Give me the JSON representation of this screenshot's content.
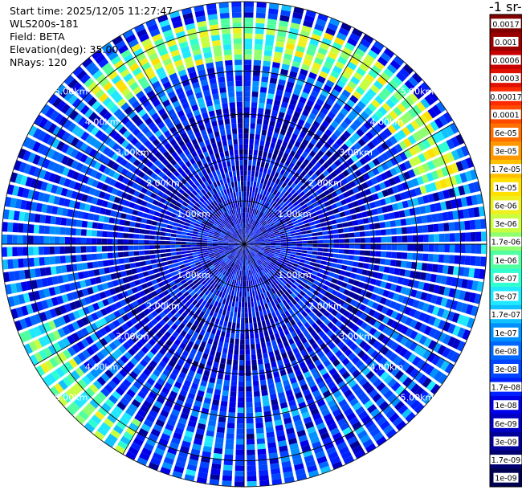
{
  "header": {
    "start_time": "Start time: 2025/12/05 11:27:47",
    "instrument": "WLS200s-181",
    "field": "Field: BETA",
    "elevation": "Elevation(deg): 35.00",
    "nrays": "NRays: 120"
  },
  "colorbar": {
    "title": "-1 sr-",
    "labels": [
      "0.0017",
      "0.001",
      "0.0006",
      "0.0003",
      "0.00017",
      "0.0001",
      "6e-05",
      "3e-05",
      "1.7e-05",
      "1e-05",
      "6e-06",
      "3e-06",
      "1.7e-06",
      "1e-06",
      "6e-07",
      "3e-07",
      "1.7e-07",
      "1e-07",
      "6e-08",
      "3e-08",
      "1.7e-08",
      "1e-08",
      "6e-09",
      "3e-09",
      "1.7e-09",
      "1e-09"
    ],
    "colors": [
      "#800000",
      "#9a0000",
      "#c80000",
      "#e01000",
      "#ff2a00",
      "#ff4a00",
      "#ff7000",
      "#ff9800",
      "#ffc000",
      "#ffe000",
      "#f0f020",
      "#c8ff40",
      "#90ff70",
      "#50ffa0",
      "#30ffd0",
      "#20e8ff",
      "#10c0ff",
      "#0090ff",
      "#0068ff",
      "#0044ff",
      "#0020ff",
      "#0000e8",
      "#0000c0",
      "#000098",
      "#000070",
      "#000050"
    ]
  },
  "chart_data": {
    "type": "heatmap",
    "projection": "polar-ppi",
    "field": "BETA",
    "elevation_deg": 35.0,
    "n_rays": 120,
    "max_range_km": 5.6,
    "range_rings_km": [
      1,
      2,
      3,
      4,
      5
    ],
    "ring_labels": [
      "1.00km",
      "2.00km",
      "3.00km",
      "4.00km",
      "5.00km"
    ],
    "colorscale": "log10",
    "vmin": 1e-09,
    "vmax": 0.0017,
    "features": [
      {
        "description": "enhanced backscatter arc",
        "range_km": [
          4.2,
          5.2
        ],
        "azimuth_deg": [
          315,
          75
        ],
        "value": 3e-06
      },
      {
        "description": "enhanced backscatter arc",
        "range_km": [
          4.8,
          5.6
        ],
        "azimuth_deg": [
          210,
          250
        ],
        "value": 1.7e-06
      }
    ],
    "grid": true
  }
}
